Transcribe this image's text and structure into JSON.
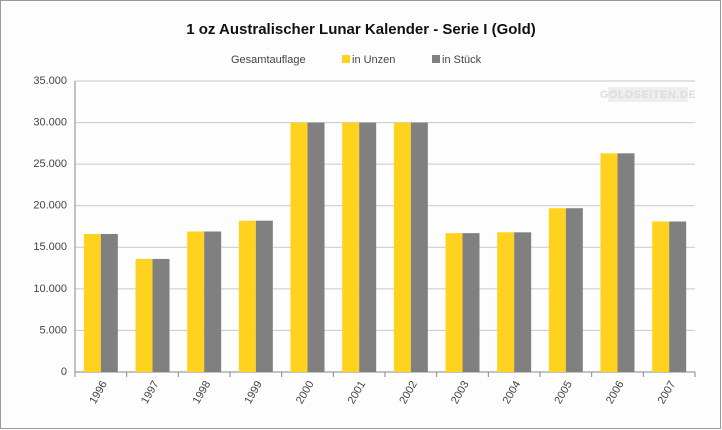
{
  "chart_data": {
    "type": "bar",
    "title": "1 oz Australischer Lunar Kalender - Serie I (Gold)",
    "legend_title": "Gesamtauflage",
    "watermark": "GOLDSEITEN.DE",
    "categories": [
      "1996",
      "1997",
      "1998",
      "1999",
      "2000",
      "2001",
      "2002",
      "2003",
      "2004",
      "2005",
      "2006",
      "2007"
    ],
    "series": [
      {
        "name": "in Unzen",
        "color": "#ffd21f",
        "values": [
          16600,
          13600,
          16900,
          18200,
          30000,
          30000,
          30000,
          16700,
          16800,
          19700,
          26300,
          18100
        ]
      },
      {
        "name": "in Stück",
        "color": "#808080",
        "values": [
          16600,
          13600,
          16900,
          18200,
          30000,
          30000,
          30000,
          16700,
          16800,
          19700,
          26300,
          18100
        ]
      }
    ],
    "ylim": [
      0,
      35000
    ],
    "yticks": [
      {
        "value": 0,
        "label": "0"
      },
      {
        "value": 5000,
        "label": "5.000"
      },
      {
        "value": 10000,
        "label": "10.000"
      },
      {
        "value": 15000,
        "label": "15.000"
      },
      {
        "value": 20000,
        "label": "20.000"
      },
      {
        "value": 25000,
        "label": "25.000"
      },
      {
        "value": 30000,
        "label": "30.000"
      },
      {
        "value": 35000,
        "label": "35.000"
      }
    ],
    "grid": true,
    "legend": "top"
  }
}
